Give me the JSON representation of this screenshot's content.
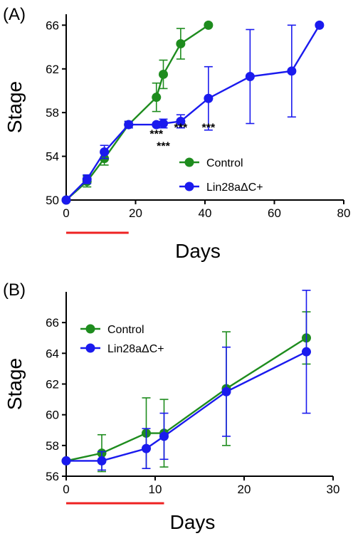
{
  "chart_data": [
    {
      "type": "line",
      "panel_label": "(A)",
      "xlabel": "Days",
      "ylabel": "Stage",
      "xlim": [
        0,
        80
      ],
      "ylim": [
        50,
        67
      ],
      "xticks": [
        0,
        20,
        40,
        60,
        80
      ],
      "yticks": [
        50,
        54,
        58,
        62,
        66
      ],
      "legend_position": "center-right",
      "treatment_bar": {
        "start": 0,
        "end": 18,
        "color": "#ee2222"
      },
      "significance": [
        {
          "text": "***",
          "x": 26,
          "y": 55.7
        },
        {
          "text": "***",
          "x": 28,
          "y": 54.6
        },
        {
          "text": "***",
          "x": 33,
          "y": 56.3
        },
        {
          "text": "***",
          "x": 41,
          "y": 56.3
        }
      ],
      "series": [
        {
          "name": "Control",
          "color": "#1e8c1e",
          "x": [
            0,
            6,
            11,
            18,
            26,
            28,
            33,
            41
          ],
          "y": [
            50,
            51.7,
            53.8,
            56.9,
            59.4,
            61.5,
            64.3,
            66
          ],
          "err": [
            0,
            0.5,
            0.6,
            0.3,
            1.3,
            1.3,
            1.4,
            0
          ]
        },
        {
          "name": "Lin28aΔC+",
          "color": "#1a1aee",
          "x": [
            0,
            6,
            11,
            18,
            26,
            28,
            33,
            41,
            53,
            65,
            73
          ],
          "y": [
            50,
            51.9,
            54.4,
            56.9,
            56.9,
            57.0,
            57.2,
            59.3,
            61.3,
            61.8,
            66
          ],
          "err": [
            0,
            0.4,
            0.6,
            0.3,
            0,
            0.4,
            0.6,
            2.9,
            4.3,
            4.2,
            0
          ]
        }
      ]
    },
    {
      "type": "line",
      "panel_label": "(B)",
      "xlabel": "Days",
      "ylabel": "Stage",
      "xlim": [
        0,
        30
      ],
      "ylim": [
        56,
        68
      ],
      "xticks": [
        0,
        10,
        20,
        30
      ],
      "yticks": [
        56,
        58,
        60,
        62,
        64,
        66
      ],
      "legend_position": "top-left",
      "treatment_bar": {
        "start": 0,
        "end": 11,
        "color": "#ee2222"
      },
      "series": [
        {
          "name": "Control",
          "color": "#1e8c1e",
          "x": [
            0,
            4,
            9,
            11,
            18,
            27
          ],
          "y": [
            57,
            57.5,
            58.8,
            58.8,
            61.7,
            65
          ],
          "err": [
            0,
            1.2,
            2.3,
            2.2,
            3.7,
            1.7
          ]
        },
        {
          "name": "Lin28aΔC+",
          "color": "#1a1aee",
          "x": [
            0,
            4,
            9,
            11,
            18,
            27
          ],
          "y": [
            57,
            57,
            57.8,
            58.6,
            61.5,
            64.1
          ],
          "err": [
            0,
            0.6,
            1.3,
            1.5,
            2.9,
            4.0
          ]
        }
      ]
    }
  ]
}
